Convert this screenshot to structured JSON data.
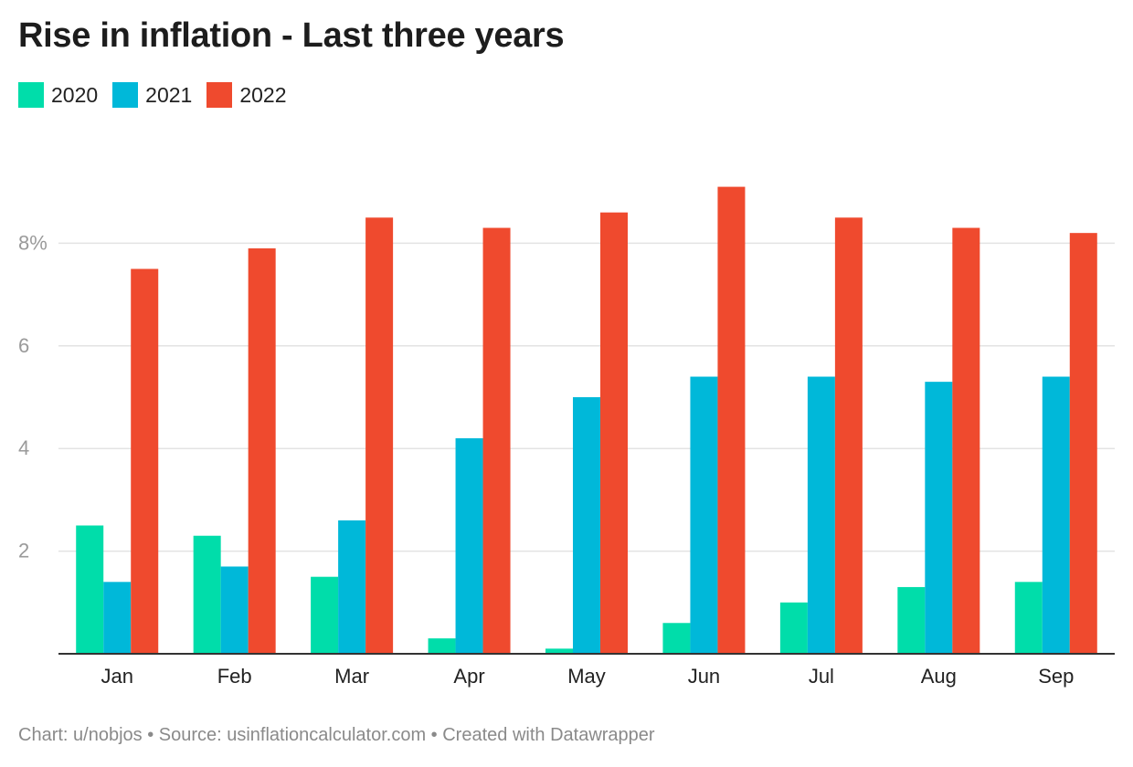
{
  "chart_data": {
    "type": "bar",
    "title": "Rise in inflation - Last three years",
    "categories": [
      "Jan",
      "Feb",
      "Mar",
      "Apr",
      "May",
      "Jun",
      "Jul",
      "Aug",
      "Sep"
    ],
    "series": [
      {
        "name": "2020",
        "color": "#00ddaa",
        "values": [
          2.5,
          2.3,
          1.5,
          0.3,
          0.1,
          0.6,
          1.0,
          1.3,
          1.4
        ]
      },
      {
        "name": "2021",
        "color": "#00b8d9",
        "values": [
          1.4,
          1.7,
          2.6,
          4.2,
          5.0,
          5.4,
          5.4,
          5.3,
          5.4
        ]
      },
      {
        "name": "2022",
        "color": "#ef4a2e",
        "values": [
          7.5,
          7.9,
          8.5,
          8.3,
          8.6,
          9.1,
          8.5,
          8.3,
          8.2
        ]
      }
    ],
    "yticks": [
      {
        "value": 2,
        "label": "2"
      },
      {
        "value": 4,
        "label": "4"
      },
      {
        "value": 6,
        "label": "6"
      },
      {
        "value": 8,
        "label": "8%"
      }
    ],
    "ylim": [
      0,
      10
    ],
    "grid": true,
    "legend_position": "top-left"
  },
  "footer": {
    "text": "Chart: u/nobjos • Source: usinflationcalculator.com • Created with Datawrapper"
  }
}
